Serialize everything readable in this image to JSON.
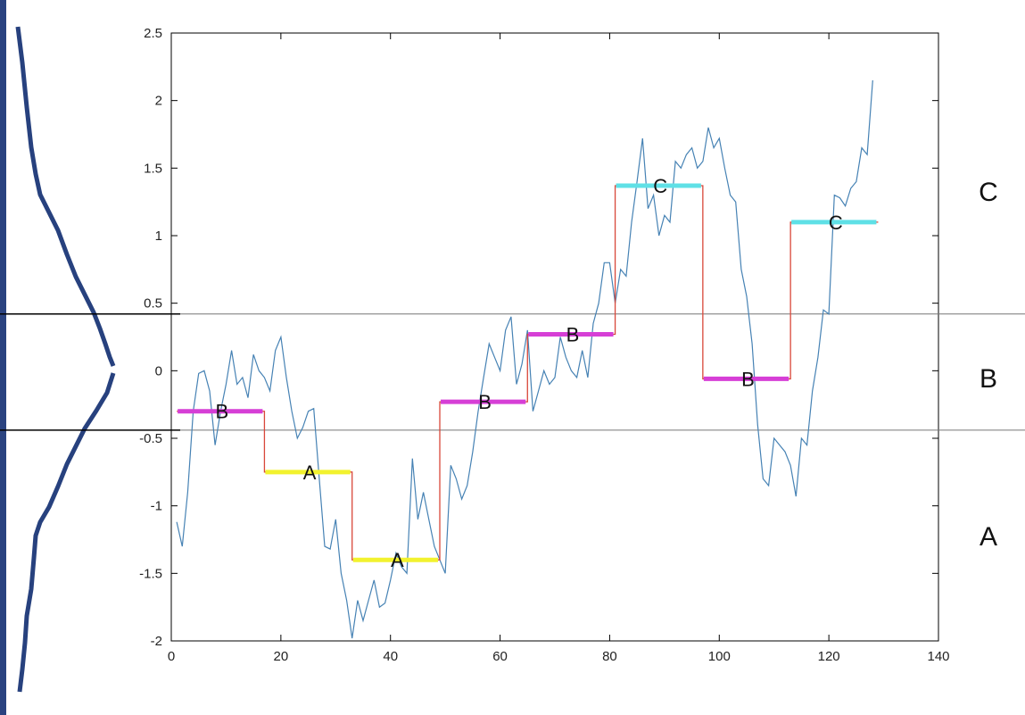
{
  "chart_data": {
    "type": "line",
    "title": "",
    "xlabel": "",
    "ylabel": "",
    "xlim": [
      0,
      140
    ],
    "ylim": [
      -2,
      2.5
    ],
    "x_ticks": [
      0,
      20,
      40,
      60,
      80,
      100,
      120,
      140
    ],
    "y_ticks": [
      -2,
      -1.5,
      -1,
      -0.5,
      0,
      0.5,
      1,
      1.5,
      2,
      2.5
    ],
    "y_tick_labels": [
      "-2",
      "-1.5",
      "-1",
      "-0.5",
      "0",
      "0.5",
      "1",
      "1.5",
      "2",
      "2.5"
    ],
    "grid": false,
    "thresholds": [
      -0.44,
      0.42
    ],
    "region_labels": [
      {
        "label": "C",
        "y": 1.33
      },
      {
        "label": "B",
        "y": -0.05
      },
      {
        "label": "A",
        "y": -1.22
      }
    ],
    "series": [
      {
        "x": [
          1,
          2,
          3,
          4,
          5,
          6,
          7,
          8,
          9,
          10,
          11,
          12,
          13,
          14,
          15,
          16,
          17,
          18,
          19,
          20,
          21,
          22,
          23,
          24,
          25,
          26,
          27,
          28,
          29,
          30,
          31,
          32,
          33,
          34,
          35,
          36,
          37,
          38,
          39,
          40,
          41,
          42,
          43,
          44,
          45,
          46,
          47,
          48,
          49,
          50,
          51,
          52,
          53,
          54,
          55,
          56,
          57,
          58,
          59,
          60,
          61,
          62,
          63,
          64,
          65,
          66,
          67,
          68,
          69,
          70,
          71,
          72,
          73,
          74,
          75,
          76,
          77,
          78,
          79,
          80,
          81,
          82,
          83,
          84,
          85,
          86,
          87,
          88,
          89,
          90,
          91,
          92,
          93,
          94,
          95,
          96,
          97,
          98,
          99,
          100,
          101,
          102,
          103,
          104,
          105,
          106,
          107,
          108,
          109,
          110,
          111,
          112,
          113,
          114,
          115,
          116,
          117,
          118,
          119,
          120,
          121,
          122,
          123,
          124,
          125,
          126,
          127,
          128
        ],
        "values": [
          -1.12,
          -1.3,
          -0.9,
          -0.3,
          -0.02,
          0.0,
          -0.15,
          -0.55,
          -0.3,
          -0.1,
          0.15,
          -0.1,
          -0.05,
          -0.2,
          0.12,
          0.0,
          -0.05,
          -0.15,
          0.15,
          0.25,
          -0.05,
          -0.3,
          -0.5,
          -0.42,
          -0.3,
          -0.28,
          -0.8,
          -1.3,
          -1.32,
          -1.1,
          -1.5,
          -1.7,
          -1.98,
          -1.7,
          -1.85,
          -1.7,
          -1.55,
          -1.75,
          -1.72,
          -1.55,
          -1.35,
          -1.45,
          -1.5,
          -0.65,
          -1.1,
          -0.9,
          -1.1,
          -1.3,
          -1.4,
          -1.5,
          -0.7,
          -0.8,
          -0.95,
          -0.85,
          -0.6,
          -0.3,
          -0.05,
          0.2,
          0.1,
          0.0,
          0.3,
          0.4,
          -0.1,
          0.05,
          0.3,
          -0.3,
          -0.15,
          0.0,
          -0.1,
          -0.05,
          0.25,
          0.1,
          0.0,
          -0.05,
          0.15,
          -0.05,
          0.35,
          0.5,
          0.8,
          0.8,
          0.5,
          0.75,
          0.7,
          1.1,
          1.4,
          1.72,
          1.2,
          1.3,
          1.0,
          1.15,
          1.1,
          1.55,
          1.5,
          1.6,
          1.65,
          1.5,
          1.55,
          1.8,
          1.65,
          1.72,
          1.5,
          1.3,
          1.25,
          0.75,
          0.55,
          0.2,
          -0.4,
          -0.8,
          -0.85,
          -0.5,
          -0.55,
          -0.6,
          -0.7,
          -0.93,
          -0.5,
          -0.55,
          -0.15,
          0.1,
          0.45,
          0.42,
          1.3,
          1.28,
          1.22,
          1.35,
          1.4,
          1.65,
          1.6,
          2.15
        ]
      }
    ],
    "regimes": [
      {
        "label": "B",
        "x0": 1,
        "x1": 17,
        "y": -0.3,
        "color": "#d63fd6"
      },
      {
        "label": "A",
        "x0": 17,
        "x1": 33,
        "y": -0.75,
        "color": "#f2f22e"
      },
      {
        "label": "A",
        "x0": 33,
        "x1": 49,
        "y": -1.4,
        "color": "#f2f22e"
      },
      {
        "label": "B",
        "x0": 49,
        "x1": 65,
        "y": -0.23,
        "color": "#d63fd6"
      },
      {
        "label": "B",
        "x0": 65,
        "x1": 81,
        "y": 0.27,
        "color": "#d63fd6"
      },
      {
        "label": "C",
        "x0": 81,
        "x1": 97,
        "y": 1.37,
        "color": "#5fe0e6"
      },
      {
        "label": "B",
        "x0": 97,
        "x1": 113,
        "y": -0.06,
        "color": "#d63fd6"
      },
      {
        "label": "C",
        "x0": 113,
        "x1": 129,
        "y": 1.1,
        "color": "#5fe0e6"
      }
    ],
    "colors": {
      "series_line": "#4682b4",
      "step_line": "#d9473a",
      "distribution_curve": "#27417e",
      "left_border": "#2a4380"
    }
  }
}
